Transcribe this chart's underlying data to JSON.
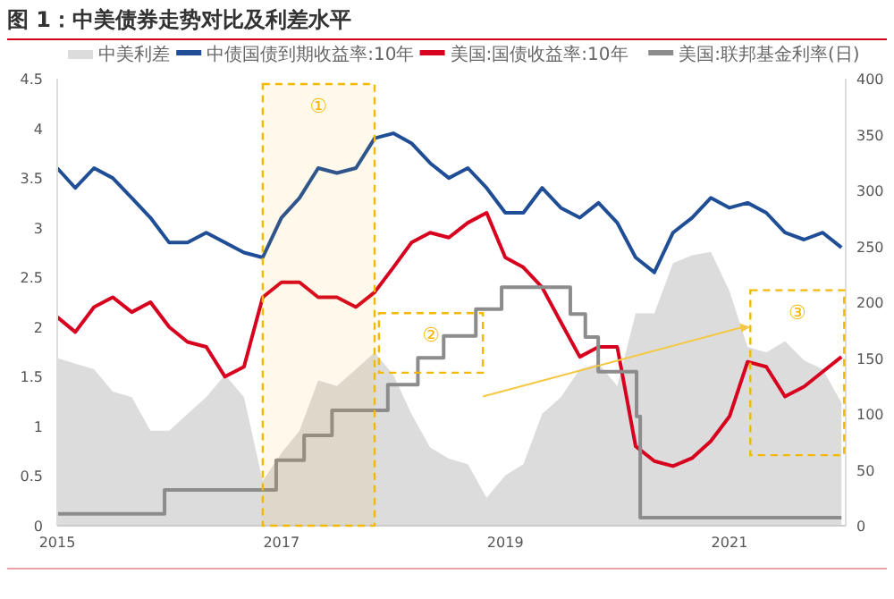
{
  "chart_data": {
    "type": "line",
    "title": "图 1：中美债券走势对比及利差水平",
    "x": [
      "2015-01",
      "2015-03",
      "2015-05",
      "2015-07",
      "2015-09",
      "2015-11",
      "2016-01",
      "2016-03",
      "2016-05",
      "2016-07",
      "2016-09",
      "2016-11",
      "2017-01",
      "2017-03",
      "2017-05",
      "2017-07",
      "2017-09",
      "2017-11",
      "2018-01",
      "2018-03",
      "2018-05",
      "2018-07",
      "2018-09",
      "2018-11",
      "2019-01",
      "2019-03",
      "2019-05",
      "2019-07",
      "2019-09",
      "2019-11",
      "2020-01",
      "2020-03",
      "2020-05",
      "2020-07",
      "2020-09",
      "2020-11",
      "2021-01",
      "2021-03",
      "2021-05",
      "2021-07",
      "2021-09",
      "2021-11",
      "2022-01"
    ],
    "series": [
      {
        "name": "中美利差",
        "type": "area",
        "axis": "y2",
        "color": "#dcdcdc",
        "values": [
          150,
          145,
          140,
          120,
          115,
          85,
          85,
          100,
          115,
          135,
          115,
          40,
          65,
          85,
          130,
          125,
          140,
          155,
          135,
          100,
          70,
          60,
          55,
          25,
          45,
          55,
          100,
          115,
          140,
          145,
          125,
          190,
          190,
          235,
          242,
          245,
          210,
          160,
          155,
          165,
          148,
          140,
          110
        ]
      },
      {
        "name": "中债国债到期收益率:10年",
        "color": "#1f4e96",
        "values": [
          3.6,
          3.4,
          3.6,
          3.5,
          3.3,
          3.1,
          2.85,
          2.85,
          2.95,
          2.85,
          2.75,
          2.7,
          3.1,
          3.3,
          3.6,
          3.55,
          3.6,
          3.9,
          3.95,
          3.85,
          3.65,
          3.5,
          3.6,
          3.4,
          3.15,
          3.15,
          3.4,
          3.2,
          3.1,
          3.25,
          3.05,
          2.7,
          2.55,
          2.95,
          3.1,
          3.3,
          3.2,
          3.25,
          3.15,
          2.95,
          2.88,
          2.95,
          2.8
        ]
      },
      {
        "name": "美国:国债收益率:10年",
        "color": "#d7001f",
        "values": [
          2.1,
          1.95,
          2.2,
          2.3,
          2.15,
          2.25,
          2.0,
          1.85,
          1.8,
          1.5,
          1.6,
          2.3,
          2.45,
          2.45,
          2.3,
          2.3,
          2.2,
          2.35,
          2.6,
          2.85,
          2.95,
          2.9,
          3.05,
          3.15,
          2.7,
          2.6,
          2.4,
          2.05,
          1.7,
          1.8,
          1.8,
          0.8,
          0.65,
          0.6,
          0.68,
          0.85,
          1.1,
          1.65,
          1.6,
          1.3,
          1.4,
          1.55,
          1.7
        ]
      },
      {
        "name": "美国:联邦基金利率(日)",
        "type": "step",
        "color": "#8c8c8c",
        "x": [
          "2015-01",
          "2015-12-17",
          "2016-12-15",
          "2017-03-16",
          "2017-06-15",
          "2017-12-14",
          "2018-03-22",
          "2018-06-14",
          "2018-09-27",
          "2018-12-20",
          "2019-08-01",
          "2019-09-19",
          "2019-10-31",
          "2020-03-04",
          "2020-03-16",
          "2022-01"
        ],
        "values": [
          0.12,
          0.36,
          0.66,
          0.91,
          1.16,
          1.42,
          1.69,
          1.91,
          2.18,
          2.4,
          2.13,
          1.9,
          1.55,
          1.1,
          0.08,
          0.08
        ]
      }
    ],
    "xlim": [
      "2015-01-01",
      "2022-01-15"
    ],
    "xticks": [
      "2015",
      "2017",
      "2019",
      "2021"
    ],
    "ylim": [
      0,
      4.5
    ],
    "yticks": [
      0,
      0.5,
      1,
      1.5,
      2,
      2.5,
      3,
      3.5,
      4,
      4.5
    ],
    "y2lim": [
      0,
      400
    ],
    "y2ticks": [
      0,
      50,
      100,
      150,
      200,
      250,
      300,
      350,
      400
    ],
    "annotations": [
      "②",
      "③"
    ],
    "bands": [
      {
        "axis": "x",
        "from": "2016-11",
        "to": "2017-11",
        "label": "①",
        "color": "#f5b800"
      }
    ],
    "legend": "top",
    "grid": false,
    "line_style": "solid",
    "marker": "none"
  }
}
